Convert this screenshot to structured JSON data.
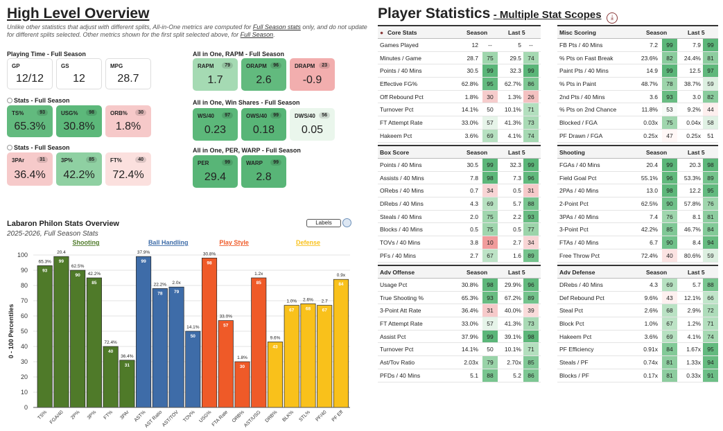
{
  "overview": {
    "title": "High Level Overview",
    "note_parts": [
      "Unlike other statistics that adjust with different splits, All-in-One metrics are computed for ",
      "Full Season stats",
      " only, and do not update for different splits selected. Other metrics shown for the first split selected above, for ",
      "Full Season",
      "."
    ]
  },
  "playing_time": {
    "title": "Playing Time - Full Season",
    "cards": [
      {
        "label": "GP",
        "value": "12/12"
      },
      {
        "label": "GS",
        "value": "12"
      },
      {
        "label": "MPG",
        "value": "28.7"
      }
    ]
  },
  "stats1": {
    "title": "Stats - Full Season",
    "cards": [
      {
        "label": "TS%",
        "pct": "93",
        "value": "65.3%",
        "color": "#62ba7e"
      },
      {
        "label": "USG%",
        "pct": "98",
        "value": "30.8%",
        "color": "#5cb87a"
      },
      {
        "label": "ORB%",
        "pct": "30",
        "value": "1.8%",
        "color": "#f6c9c9"
      }
    ]
  },
  "stats2": {
    "title": "Stats - Full Season",
    "cards": [
      {
        "label": "3PAr",
        "pct": "31",
        "value": "36.4%",
        "color": "#f6caca"
      },
      {
        "label": "3P%",
        "pct": "85",
        "value": "42.2%",
        "color": "#8fd0a2"
      },
      {
        "label": "FT%",
        "pct": "40",
        "value": "72.4%",
        "color": "#fbe0de"
      }
    ]
  },
  "rapm": {
    "title": "All in One, RAPM - Full Season",
    "cards": [
      {
        "label": "RAPM",
        "pct": "79",
        "value": "1.7",
        "color": "#a5dab3"
      },
      {
        "label": "ORAPM",
        "pct": "96",
        "value": "2.6",
        "color": "#62ba7e"
      },
      {
        "label": "DRAPM",
        "pct": "23",
        "value": "-0.9",
        "color": "#f2aeae"
      }
    ]
  },
  "winshares": {
    "title": "All in One, Win Shares - Full Season",
    "cards": [
      {
        "label": "WS/40",
        "pct": "97",
        "value": "0.23",
        "color": "#5cb87a"
      },
      {
        "label": "OWS/40",
        "pct": "99",
        "value": "0.18",
        "color": "#58b577"
      },
      {
        "label": "DWS/40",
        "pct": "56",
        "value": "0.05",
        "color": "#eaf6ec"
      }
    ]
  },
  "perwarp": {
    "title": "All in One, PER, WARP - Full Season",
    "cards": [
      {
        "label": "PER",
        "pct": "99",
        "value": "29.4",
        "color": "#58b577"
      },
      {
        "label": "WARP",
        "pct": "99",
        "value": "2.8",
        "color": "#58b577"
      }
    ]
  },
  "chart_data": {
    "type": "bar",
    "title": "Labaron Philon Stats Overview",
    "subtitle": "2025-2026, Full Season Stats",
    "labels_button": "Labels",
    "ylabel": "0 - 100 Percentiles",
    "ylim": [
      0,
      100
    ],
    "yticks": [
      0,
      10,
      20,
      30,
      40,
      50,
      60,
      70,
      80,
      90,
      100
    ],
    "categories_groups": [
      {
        "name": "Shooting",
        "color": "#4f7a29"
      },
      {
        "name": "Ball Handling",
        "color": "#3e6ca8"
      },
      {
        "name": "Play Style",
        "color": "#ef5a28"
      },
      {
        "name": "Defense",
        "color": "#f9c11b"
      }
    ],
    "bars": [
      {
        "x": "TS%",
        "value": 93,
        "raw": "65.3%",
        "group": 0
      },
      {
        "x": "FGA/40",
        "value": 99,
        "raw": "20.4",
        "group": 0
      },
      {
        "x": "2P%",
        "value": 90,
        "raw": "62.5%",
        "group": 0
      },
      {
        "x": "3P%",
        "value": 85,
        "raw": "42.2%",
        "group": 0
      },
      {
        "x": "FT%",
        "value": 40,
        "raw": "72.4%",
        "group": 0
      },
      {
        "x": "3PAr",
        "value": 31,
        "raw": "36.4%",
        "group": 0
      },
      {
        "x": "AST%",
        "value": 99,
        "raw": "37.9%",
        "group": 1
      },
      {
        "x": "AST Ratio",
        "value": 78,
        "raw": "22.2%",
        "group": 1
      },
      {
        "x": "AST/TOV",
        "value": 79,
        "raw": "2.0x",
        "group": 1
      },
      {
        "x": "TOV%",
        "value": 50,
        "raw": "14.1%",
        "group": 1
      },
      {
        "x": "USG%",
        "value": 98,
        "raw": "30.8%",
        "group": 2
      },
      {
        "x": "FTA Rate",
        "value": 57,
        "raw": "33.0%",
        "group": 2
      },
      {
        "x": "ORB%",
        "value": 30,
        "raw": "1.8%",
        "group": 2
      },
      {
        "x": "AST/USG",
        "value": 85,
        "raw": "1.2x",
        "group": 2
      },
      {
        "x": "DRB%",
        "value": 43,
        "raw": "9.6%",
        "group": 3
      },
      {
        "x": "BLK%",
        "value": 67,
        "raw": "1.0%",
        "group": 3
      },
      {
        "x": "STL%",
        "value": 68,
        "raw": "2.6%",
        "group": 3
      },
      {
        "x": "PF/40",
        "value": 67,
        "raw": "2.7",
        "group": 3
      },
      {
        "x": "PF Eff",
        "value": 84,
        "raw": "0.9x",
        "group": 3
      }
    ]
  },
  "player_stats": {
    "title": "Player Statistics",
    "subtitle": "- Multiple Stat Scopes",
    "tables": [
      {
        "title": "Core Stats",
        "col1": "Season",
        "col2": "Last 5",
        "rows": [
          [
            "Games Played",
            "12",
            "--",
            "5",
            "--",
            "",
            ""
          ],
          [
            "Minutes / Game",
            "28.7",
            "75",
            "29.5",
            "74",
            "#9fd6ad",
            "#a5d9b2"
          ],
          [
            "Points / 40 Mins",
            "30.5",
            "99",
            "32.3",
            "99",
            "#5bb679",
            "#5bb679"
          ],
          [
            "Effective FG%",
            "62.8%",
            "95",
            "62.7%",
            "86",
            "#63ba7f",
            "#7dc793"
          ],
          [
            "Off Rebound Pct",
            "1.8%",
            "30",
            "1.3%",
            "26",
            "#f6cccc",
            "#f4c1c1"
          ],
          [
            "Turnover Pct",
            "14.1%",
            "50",
            "10.1%",
            "71",
            "#ffffff",
            "#b3dfbe"
          ],
          [
            "FT Attempt Rate",
            "33.0%",
            "57",
            "41.3%",
            "73",
            "#e6f4e9",
            "#a9dab5"
          ],
          [
            "Hakeem Pct",
            "3.6%",
            "69",
            "4.1%",
            "74",
            "#b7e1c1",
            "#a5d9b2"
          ]
        ]
      },
      {
        "title": "Misc Scoring",
        "col1": "Season",
        "col2": "Last 5",
        "rows": [
          [
            "FB Pts / 40 Mins",
            "7.2",
            "99",
            "7.9",
            "99",
            "#5bb679",
            "#5bb679"
          ],
          [
            "% Pts on Fast Break",
            "23.6%",
            "82",
            "24.4%",
            "81",
            "#8acc9d",
            "#8dcd9f"
          ],
          [
            "Paint Pts / 40 Mins",
            "14.9",
            "99",
            "12.5",
            "97",
            "#5bb679",
            "#60b87c"
          ],
          [
            "% Pts in Paint",
            "48.7%",
            "78",
            "38.7%",
            "59",
            "#9cd4aa",
            "#dcefe0"
          ],
          [
            "2nd Pts / 40 Mins",
            "3.6",
            "93",
            "3.0",
            "82",
            "#68bc82",
            "#8acc9d"
          ],
          [
            "% Pts on 2nd Chance",
            "11.8%",
            "53",
            "9.2%",
            "44",
            "#f7fbf8",
            "#fdefee"
          ],
          [
            "Blocked / FGA",
            "0.03x",
            "75",
            "0.04x",
            "58",
            "#a0d6ae",
            "#e0f1e4"
          ],
          [
            "PF Drawn / FGA",
            "0.25x",
            "47",
            "0.25x",
            "51",
            "#fff7f6",
            "#ffffff"
          ]
        ]
      },
      {
        "title": "Box Score",
        "col1": "Season",
        "col2": "Last 5",
        "rows": [
          [
            "Points / 40 Mins",
            "30.5",
            "99",
            "32.3",
            "99",
            "#5bb679",
            "#5bb679"
          ],
          [
            "Assists / 40 Mins",
            "7.8",
            "98",
            "7.3",
            "96",
            "#5db77a",
            "#61b97d"
          ],
          [
            "ORebs / 40 Mins",
            "0.7",
            "34",
            "0.5",
            "31",
            "#f8d5d5",
            "#f6caca"
          ],
          [
            "DRebs / 40 Mins",
            "4.3",
            "69",
            "5.7",
            "88",
            "#b7e1c1",
            "#78c58f"
          ],
          [
            "Steals / 40 Mins",
            "2.0",
            "75",
            "2.2",
            "93",
            "#a0d6ae",
            "#68bc82"
          ],
          [
            "Blocks / 40 Mins",
            "0.5",
            "75",
            "0.5",
            "77",
            "#a0d6ae",
            "#9cd4aa"
          ],
          [
            "TOVs / 40 Mins",
            "3.8",
            "10",
            "2.7",
            "34",
            "#f19c9c",
            "#f8d5d5"
          ],
          [
            "PFs / 40 Mins",
            "2.7",
            "67",
            "1.6",
            "89",
            "#bde3c6",
            "#74c38c"
          ]
        ]
      },
      {
        "title": "Shooting",
        "col1": "Season",
        "col2": "Last 5",
        "rows": [
          [
            "FGAs / 40 Mins",
            "20.4",
            "99",
            "20.3",
            "98",
            "#5bb679",
            "#5db77a"
          ],
          [
            "Field Goal Pct",
            "55.1%",
            "96",
            "53.3%",
            "89",
            "#61b97d",
            "#74c38c"
          ],
          [
            "2PAs / 40 Mins",
            "13.0",
            "98",
            "12.2",
            "95",
            "#5db77a",
            "#63ba7f"
          ],
          [
            "2-Point Pct",
            "62.5%",
            "90",
            "57.8%",
            "76",
            "#70c18a",
            "#9fd6ad"
          ],
          [
            "3PAs / 40 Mins",
            "7.4",
            "76",
            "8.1",
            "81",
            "#9fd6ad",
            "#8dcd9f"
          ],
          [
            "3-Point Pct",
            "42.2%",
            "85",
            "46.7%",
            "84",
            "#80c896",
            "#83ca98"
          ],
          [
            "FTAs / 40 Mins",
            "6.7",
            "90",
            "8.4",
            "94",
            "#70c18a",
            "#66bb80"
          ],
          [
            "Free Throw Pct",
            "72.4%",
            "40",
            "80.6%",
            "59",
            "#fbe3e2",
            "#dcefe0"
          ]
        ]
      },
      {
        "title": "Adv Offense",
        "col1": "Season",
        "col2": "Last 5",
        "rows": [
          [
            "Usage Pct",
            "30.8%",
            "98",
            "29.9%",
            "96",
            "#5db77a",
            "#61b97d"
          ],
          [
            "True Shooting %",
            "65.3%",
            "93",
            "67.2%",
            "89",
            "#68bc82",
            "#74c38c"
          ],
          [
            "3-Point Att Rate",
            "36.4%",
            "31",
            "40.0%",
            "39",
            "#f6caca",
            "#fadcdb"
          ],
          [
            "FT Attempt Rate",
            "33.0%",
            "57",
            "41.3%",
            "73",
            "#e6f4e9",
            "#a9dab5"
          ],
          [
            "Assist Pct",
            "37.9%",
            "99",
            "39.1%",
            "98",
            "#5bb679",
            "#5db77a"
          ],
          [
            "Turnover Pct",
            "14.1%",
            "50",
            "10.1%",
            "71",
            "#ffffff",
            "#b3dfbe"
          ],
          [
            "Ast/Tov Ratio",
            "2.03x",
            "79",
            "2.70x",
            "85",
            "#99d3a8",
            "#80c896"
          ],
          [
            "PFDs / 40 Mins",
            "5.1",
            "88",
            "5.2",
            "86",
            "#78c58f",
            "#7dc793"
          ]
        ]
      },
      {
        "title": "Adv Defense",
        "col1": "Season",
        "col2": "Last 5",
        "rows": [
          [
            "DRebs / 40 Mins",
            "4.3",
            "69",
            "5.7",
            "88",
            "#b7e1c1",
            "#78c58f"
          ],
          [
            "Def Rebound Pct",
            "9.6%",
            "43",
            "12.1%",
            "66",
            "#fdf0ef",
            "#c1e5ca"
          ],
          [
            "Steal Pct",
            "2.6%",
            "68",
            "2.9%",
            "72",
            "#bae2c4",
            "#aedcba"
          ],
          [
            "Block Pct",
            "1.0%",
            "67",
            "1.2%",
            "71",
            "#bde3c6",
            "#b3dfbe"
          ],
          [
            "Hakeem Pct",
            "3.6%",
            "69",
            "4.1%",
            "74",
            "#b7e1c1",
            "#a5d9b2"
          ],
          [
            "PF Efficiency",
            "0.91x",
            "84",
            "1.67x",
            "95",
            "#83ca98",
            "#63ba7f"
          ],
          [
            "Steals / PF",
            "0.74x",
            "81",
            "1.33x",
            "94",
            "#8dcd9f",
            "#66bb80"
          ],
          [
            "Blocks / PF",
            "0.17x",
            "81",
            "0.33x",
            "91",
            "#8dcd9f",
            "#6dbf87"
          ]
        ]
      }
    ]
  }
}
